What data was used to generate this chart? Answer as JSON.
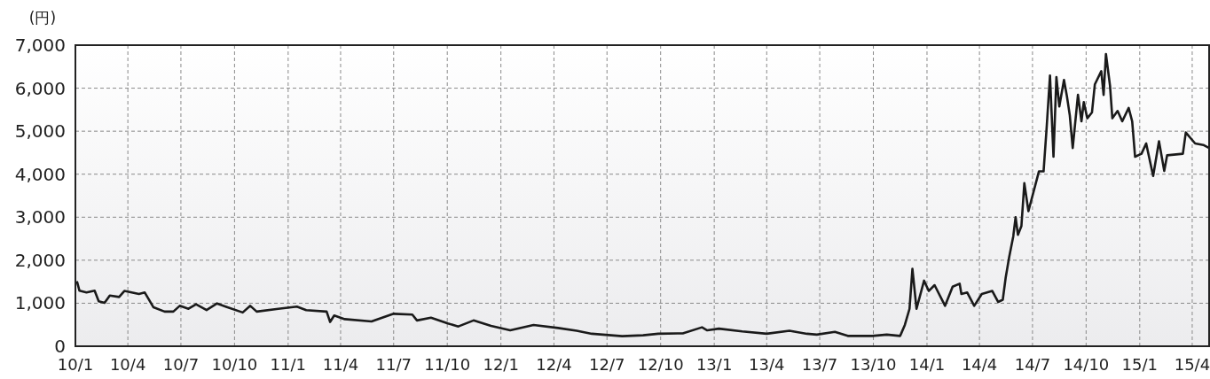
{
  "chart_data": {
    "type": "line",
    "ylabel": "(円)",
    "xlim": [
      "2010-01-01",
      "2015-04-30"
    ],
    "xticks": [
      {
        "value": "2010-01-01",
        "label": "10/1"
      },
      {
        "value": "2010-04-01",
        "label": "10/4"
      },
      {
        "value": "2010-07-01",
        "label": "10/7"
      },
      {
        "value": "2010-10-01",
        "label": "10/10"
      },
      {
        "value": "2011-01-01",
        "label": "11/1"
      },
      {
        "value": "2011-04-01",
        "label": "11/4"
      },
      {
        "value": "2011-07-01",
        "label": "11/7"
      },
      {
        "value": "2011-10-01",
        "label": "11/10"
      },
      {
        "value": "2012-01-01",
        "label": "12/1"
      },
      {
        "value": "2012-04-01",
        "label": "12/4"
      },
      {
        "value": "2012-07-01",
        "label": "12/7"
      },
      {
        "value": "2012-10-01",
        "label": "12/10"
      },
      {
        "value": "2013-01-01",
        "label": "13/1"
      },
      {
        "value": "2013-04-01",
        "label": "13/4"
      },
      {
        "value": "2013-07-01",
        "label": "13/7"
      },
      {
        "value": "2013-10-01",
        "label": "13/10"
      },
      {
        "value": "2014-01-01",
        "label": "14/1"
      },
      {
        "value": "2014-04-01",
        "label": "14/4"
      },
      {
        "value": "2014-07-01",
        "label": "14/7"
      },
      {
        "value": "2014-10-01",
        "label": "14/10"
      },
      {
        "value": "2015-01-01",
        "label": "15/1"
      },
      {
        "value": "2015-04-01",
        "label": "15/4"
      }
    ],
    "ylim": [
      0,
      7000
    ],
    "yticks": [
      {
        "value": 0,
        "label": "0"
      },
      {
        "value": 1000,
        "label": "1,000"
      },
      {
        "value": 2000,
        "label": "2,000"
      },
      {
        "value": 3000,
        "label": "3,000"
      },
      {
        "value": 4000,
        "label": "4,000"
      },
      {
        "value": 5000,
        "label": "5,000"
      },
      {
        "value": 6000,
        "label": "6,000"
      },
      {
        "value": 7000,
        "label": "7,000"
      }
    ],
    "grid": true,
    "marker": "none",
    "line_style": "solid",
    "x": [
      "2010-01-04",
      "2010-01-08",
      "2010-01-20",
      "2010-02-03",
      "2010-02-10",
      "2010-02-20",
      "2010-03-01",
      "2010-03-17",
      "2010-03-26",
      "2010-04-20",
      "2010-04-30",
      "2010-05-15",
      "2010-06-03",
      "2010-06-18",
      "2010-06-29",
      "2010-07-14",
      "2010-07-27",
      "2010-08-14",
      "2010-09-01",
      "2010-09-19",
      "2010-10-15",
      "2010-10-28",
      "2010-11-08",
      "2010-12-15",
      "2011-01-16",
      "2011-02-01",
      "2011-03-08",
      "2011-03-14",
      "2011-03-21",
      "2011-04-08",
      "2011-05-24",
      "2011-06-19",
      "2011-07-01",
      "2011-08-02",
      "2011-08-10",
      "2011-09-03",
      "2011-10-02",
      "2011-10-20",
      "2011-11-15",
      "2011-12-15",
      "2012-01-17",
      "2012-02-26",
      "2012-04-08",
      "2012-05-10",
      "2012-06-05",
      "2012-07-27",
      "2012-09-01",
      "2012-09-27",
      "2012-11-08",
      "2012-12-11",
      "2012-12-20",
      "2013-01-09",
      "2013-02-18",
      "2013-04-01",
      "2013-05-10",
      "2013-06-09",
      "2013-06-26",
      "2013-07-27",
      "2013-08-18",
      "2013-09-29",
      "2013-10-24",
      "2013-11-16",
      "2013-11-24",
      "2013-12-02",
      "2013-12-07",
      "2013-12-14",
      "2013-12-27",
      "2014-01-04",
      "2014-01-14",
      "2014-02-01",
      "2014-02-14",
      "2014-02-26",
      "2014-03-01",
      "2014-03-11",
      "2014-03-23",
      "2014-04-05",
      "2014-04-23",
      "2014-05-03",
      "2014-05-11",
      "2014-05-16",
      "2014-05-22",
      "2014-05-29",
      "2014-06-02",
      "2014-06-06",
      "2014-06-12",
      "2014-06-17",
      "2014-06-24",
      "2014-07-12",
      "2014-07-20",
      "2014-07-25",
      "2014-07-31",
      "2014-08-06",
      "2014-08-11",
      "2014-08-16",
      "2014-08-24",
      "2014-08-29",
      "2014-09-03",
      "2014-09-08",
      "2014-09-17",
      "2014-09-23",
      "2014-09-27",
      "2014-10-03",
      "2014-10-11",
      "2014-10-16",
      "2014-10-27",
      "2014-10-31",
      "2014-11-04",
      "2014-11-11",
      "2014-11-15",
      "2014-11-24",
      "2014-12-02",
      "2014-12-13",
      "2014-12-19",
      "2014-12-24",
      "2015-01-04",
      "2015-01-12",
      "2015-01-24",
      "2015-02-03",
      "2015-02-12",
      "2015-02-17",
      "2015-03-16",
      "2015-03-21",
      "2015-04-06",
      "2015-04-20",
      "2015-04-30"
    ],
    "series": [
      {
        "color": "#1a1a1a",
        "values": [
          1490,
          1290,
          1250,
          1290,
          1045,
          1010,
          1180,
          1145,
          1285,
          1215,
          1250,
          905,
          805,
          805,
          940,
          870,
          975,
          840,
          995,
          905,
          785,
          940,
          805,
          870,
          920,
          840,
          805,
          565,
          715,
          630,
          575,
          700,
          755,
          735,
          600,
          665,
          530,
          460,
          600,
          475,
          370,
          495,
          425,
          360,
          290,
          235,
          255,
          290,
          300,
          440,
          370,
          410,
          345,
          290,
          360,
          290,
          270,
          335,
          240,
          240,
          270,
          240,
          495,
          870,
          1800,
          870,
          1525,
          1285,
          1420,
          940,
          1385,
          1455,
          1215,
          1250,
          940,
          1215,
          1285,
          1030,
          1080,
          1595,
          2075,
          2555,
          3000,
          2590,
          2795,
          3790,
          3140,
          4065,
          4065,
          5025,
          6295,
          4405,
          6260,
          5575,
          6190,
          5815,
          5365,
          4610,
          5845,
          5230,
          5675,
          5300,
          5435,
          6090,
          6395,
          5845,
          6795,
          6055,
          5300,
          5470,
          5230,
          5540,
          5230,
          4405,
          4475,
          4715,
          3960,
          4765,
          4075,
          4440,
          4475,
          4970,
          4715,
          4680,
          4610
        ]
      }
    ]
  }
}
